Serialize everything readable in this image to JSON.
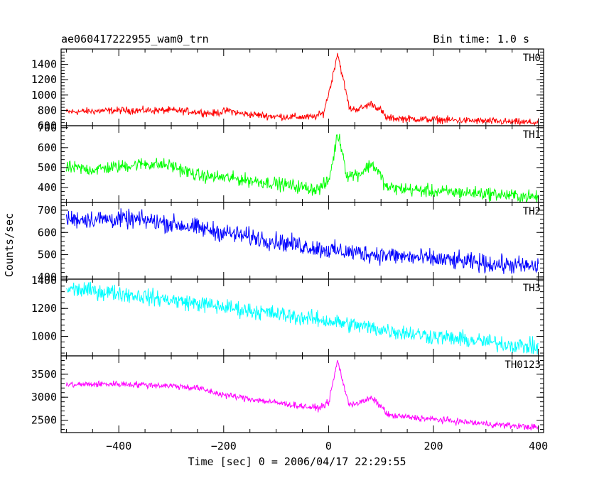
{
  "header": {
    "left_title": "ae060417222955_wam0_trn",
    "right_title": "Bin time: 1.0 s"
  },
  "chart_data": {
    "type": "line",
    "xlabel": "Time [sec] 0 = 2006/04/17 22:29:55",
    "ylabel": "Counts/sec",
    "xlim": [
      -510,
      410
    ],
    "x_ticks": [
      -400,
      -200,
      0,
      200,
      400
    ],
    "x_tick_labels": [
      "−400",
      "−200",
      "0",
      "200",
      "400"
    ],
    "panels": [
      {
        "name": "TH0",
        "color": "#ff0000",
        "ylim": [
          600,
          1600
        ],
        "y_ticks": [
          600,
          800,
          1000,
          1200,
          1400
        ],
        "y_tick_labels": [
          "600",
          "800",
          "1000",
          "1200",
          "1400"
        ],
        "noise": 40,
        "profile": [
          [
            -500,
            780
          ],
          [
            -400,
            800
          ],
          [
            -300,
            800
          ],
          [
            -250,
            780
          ],
          [
            -220,
            760
          ],
          [
            -190,
            800
          ],
          [
            -170,
            760
          ],
          [
            -100,
            720
          ],
          [
            -30,
            710
          ],
          [
            -10,
            760
          ],
          [
            5,
            1150
          ],
          [
            17,
            1550
          ],
          [
            28,
            1200
          ],
          [
            40,
            820
          ],
          [
            60,
            820
          ],
          [
            82,
            890
          ],
          [
            100,
            800
          ],
          [
            110,
            700
          ],
          [
            200,
            680
          ],
          [
            300,
            660
          ],
          [
            400,
            640
          ]
        ]
      },
      {
        "name": "TH1",
        "color": "#00ff00",
        "ylim": [
          325,
          710
        ],
        "y_ticks": [
          400,
          500,
          600,
          700
        ],
        "y_tick_labels": [
          "400",
          "500",
          "600",
          "700"
        ],
        "noise": 28,
        "profile": [
          [
            -500,
            500
          ],
          [
            -450,
            490
          ],
          [
            -350,
            520
          ],
          [
            -300,
            510
          ],
          [
            -250,
            460
          ],
          [
            -200,
            450
          ],
          [
            -100,
            420
          ],
          [
            -20,
            390
          ],
          [
            0,
            430
          ],
          [
            10,
            560
          ],
          [
            17,
            670
          ],
          [
            25,
            600
          ],
          [
            35,
            460
          ],
          [
            60,
            470
          ],
          [
            82,
            520
          ],
          [
            95,
            480
          ],
          [
            110,
            400
          ],
          [
            200,
            380
          ],
          [
            300,
            370
          ],
          [
            400,
            350
          ]
        ]
      },
      {
        "name": "TH2",
        "color": "#0000ff",
        "ylim": [
          390,
          735
        ],
        "y_ticks": [
          400,
          500,
          600,
          700
        ],
        "y_tick_labels": [
          "400",
          "500",
          "600",
          "700"
        ],
        "noise": 35,
        "profile": [
          [
            -500,
            660
          ],
          [
            -400,
            660
          ],
          [
            -350,
            655
          ],
          [
            -300,
            640
          ],
          [
            -200,
            600
          ],
          [
            -100,
            560
          ],
          [
            0,
            520
          ],
          [
            100,
            500
          ],
          [
            200,
            480
          ],
          [
            300,
            460
          ],
          [
            400,
            445
          ]
        ]
      },
      {
        "name": "TH3",
        "color": "#00ffff",
        "ylim": [
          860,
          1410
        ],
        "y_ticks": [
          1000,
          1200,
          1400
        ],
        "y_tick_labels": [
          "1000",
          "1200",
          "1400"
        ],
        "noise": 50,
        "profile": [
          [
            -500,
            1340
          ],
          [
            -400,
            1310
          ],
          [
            -300,
            1260
          ],
          [
            -200,
            1210
          ],
          [
            -100,
            1160
          ],
          [
            0,
            1110
          ],
          [
            100,
            1050
          ],
          [
            200,
            1000
          ],
          [
            300,
            960
          ],
          [
            400,
            920
          ]
        ]
      },
      {
        "name": "TH0123",
        "color": "#ff00ff",
        "ylim": [
          2230,
          3900
        ],
        "y_ticks": [
          2500,
          3000,
          3500
        ],
        "y_tick_labels": [
          "2500",
          "3000",
          "3500"
        ],
        "noise": 60,
        "profile": [
          [
            -500,
            3270
          ],
          [
            -400,
            3290
          ],
          [
            -300,
            3250
          ],
          [
            -250,
            3200
          ],
          [
            -200,
            3050
          ],
          [
            -100,
            2880
          ],
          [
            -20,
            2760
          ],
          [
            0,
            2880
          ],
          [
            10,
            3400
          ],
          [
            17,
            3800
          ],
          [
            25,
            3450
          ],
          [
            38,
            2850
          ],
          [
            60,
            2880
          ],
          [
            82,
            2980
          ],
          [
            100,
            2800
          ],
          [
            115,
            2600
          ],
          [
            200,
            2520
          ],
          [
            300,
            2420
          ],
          [
            400,
            2340
          ]
        ]
      }
    ]
  }
}
